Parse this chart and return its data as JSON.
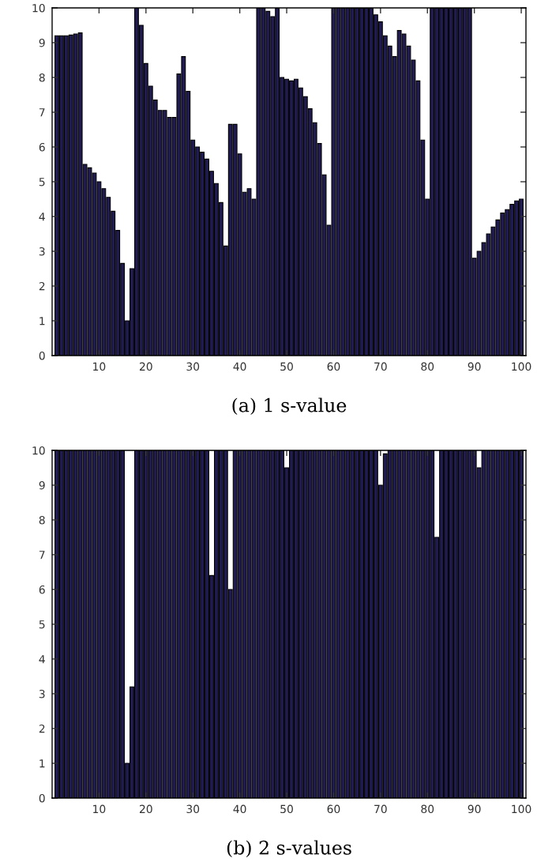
{
  "chart_data": [
    {
      "type": "bar",
      "title": "(a) 1 s-value",
      "x": [
        1,
        2,
        3,
        4,
        5,
        6,
        7,
        8,
        9,
        10,
        11,
        12,
        13,
        14,
        15,
        16,
        17,
        18,
        19,
        20,
        21,
        22,
        23,
        24,
        25,
        26,
        27,
        28,
        29,
        30,
        31,
        32,
        33,
        34,
        35,
        36,
        37,
        38,
        39,
        40,
        41,
        42,
        43,
        44,
        45,
        46,
        47,
        48,
        49,
        50,
        51,
        52,
        53,
        54,
        55,
        56,
        57,
        58,
        59,
        60,
        61,
        62,
        63,
        64,
        65,
        66,
        67,
        68,
        69,
        70,
        71,
        72,
        73,
        74,
        75,
        76,
        77,
        78,
        79,
        80,
        81,
        82,
        83,
        84,
        85,
        86,
        87,
        88,
        89,
        90,
        91,
        92,
        93,
        94,
        95,
        96,
        97,
        98,
        99,
        100
      ],
      "values": [
        9.2,
        9.2,
        9.2,
        9.22,
        9.25,
        9.28,
        5.5,
        5.4,
        5.25,
        5.0,
        4.8,
        4.55,
        4.15,
        3.6,
        2.65,
        1.0,
        2.5,
        10,
        9.5,
        8.4,
        7.75,
        7.35,
        7.05,
        7.05,
        6.85,
        6.85,
        8.1,
        8.6,
        7.6,
        6.2,
        6.0,
        5.85,
        5.65,
        5.3,
        4.95,
        4.4,
        3.15,
        6.65,
        6.65,
        5.8,
        4.7,
        4.8,
        4.5,
        10,
        10,
        9.9,
        9.75,
        10,
        8.0,
        7.95,
        7.9,
        7.95,
        7.7,
        7.45,
        7.1,
        6.7,
        6.1,
        5.2,
        3.75,
        10,
        10,
        10,
        10,
        10,
        10,
        10,
        10,
        10,
        9.8,
        9.6,
        9.2,
        8.9,
        8.6,
        9.35,
        9.25,
        8.9,
        8.5,
        7.9,
        6.2,
        4.5,
        10,
        10,
        10,
        10,
        10,
        10,
        10,
        10,
        10,
        2.8,
        3.0,
        3.25,
        3.5,
        3.7,
        3.9,
        4.1,
        4.2,
        4.35,
        4.45,
        4.5
      ],
      "color": "#201c52",
      "xlim": [
        0,
        101
      ],
      "xticks": [
        10,
        20,
        30,
        40,
        50,
        60,
        70,
        80,
        90,
        100
      ],
      "ylim": [
        0,
        10
      ],
      "yticks": [
        0,
        1,
        2,
        3,
        4,
        5,
        6,
        7,
        8,
        9,
        10
      ],
      "grid": false,
      "legend": false
    },
    {
      "type": "bar",
      "title": "(b) 2 s-values",
      "x": [
        1,
        2,
        3,
        4,
        5,
        6,
        7,
        8,
        9,
        10,
        11,
        12,
        13,
        14,
        15,
        16,
        17,
        18,
        19,
        20,
        21,
        22,
        23,
        24,
        25,
        26,
        27,
        28,
        29,
        30,
        31,
        32,
        33,
        34,
        35,
        36,
        37,
        38,
        39,
        40,
        41,
        42,
        43,
        44,
        45,
        46,
        47,
        48,
        49,
        50,
        51,
        52,
        53,
        54,
        55,
        56,
        57,
        58,
        59,
        60,
        61,
        62,
        63,
        64,
        65,
        66,
        67,
        68,
        69,
        70,
        71,
        72,
        73,
        74,
        75,
        76,
        77,
        78,
        79,
        80,
        81,
        82,
        83,
        84,
        85,
        86,
        87,
        88,
        89,
        90,
        91,
        92,
        93,
        94,
        95,
        96,
        97,
        98,
        99,
        100
      ],
      "values": [
        10,
        10,
        10,
        10,
        10,
        10,
        10,
        10,
        10,
        10,
        10,
        10,
        10,
        10,
        10,
        1.0,
        3.2,
        10,
        10,
        10,
        10,
        10,
        10,
        10,
        10,
        10,
        10,
        10,
        10,
        10,
        10,
        10,
        10,
        6.4,
        10,
        10,
        10,
        6.0,
        10,
        10,
        10,
        10,
        10,
        10,
        10,
        10,
        10,
        10,
        10,
        9.5,
        10,
        10,
        10,
        10,
        10,
        10,
        10,
        10,
        10,
        10,
        10,
        10,
        10,
        10,
        10,
        10,
        10,
        10,
        10,
        9.0,
        9.9,
        10,
        10,
        10,
        10,
        10,
        10,
        10,
        10,
        10,
        10,
        7.5,
        10,
        10,
        10,
        10,
        10,
        10,
        10,
        10,
        9.5,
        10,
        10,
        10,
        10,
        10,
        10,
        10,
        10,
        10
      ],
      "color": "#201c52",
      "xlim": [
        0,
        101
      ],
      "xticks": [
        10,
        20,
        30,
        40,
        50,
        60,
        70,
        80,
        90,
        100
      ],
      "ylim": [
        0,
        10
      ],
      "yticks": [
        0,
        1,
        2,
        3,
        4,
        5,
        6,
        7,
        8,
        9,
        10
      ],
      "grid": false,
      "legend": false
    }
  ]
}
